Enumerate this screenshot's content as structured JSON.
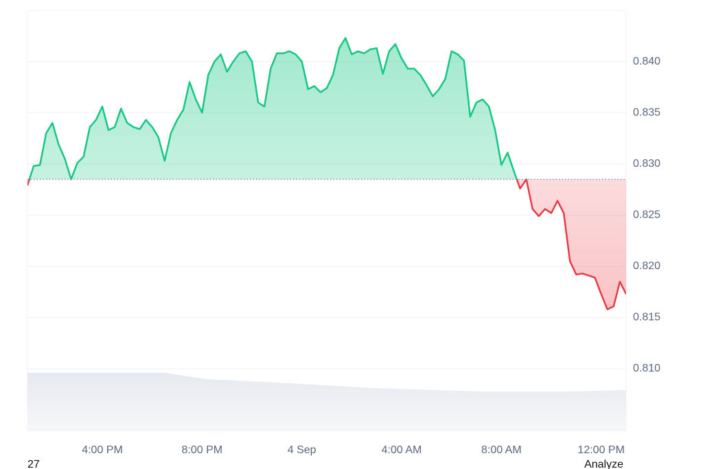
{
  "chart_data": {
    "type": "line",
    "series": [
      {
        "color_up": "#16c784",
        "color_down": "#ea3943",
        "values": [
          0.8279,
          0.8298,
          0.8299,
          0.833,
          0.834,
          0.8319,
          0.8305,
          0.8285,
          0.8301,
          0.8307,
          0.8336,
          0.8343,
          0.8356,
          0.8333,
          0.8336,
          0.8354,
          0.834,
          0.8336,
          0.8334,
          0.8343,
          0.8336,
          0.8326,
          0.8303,
          0.833,
          0.8343,
          0.8353,
          0.838,
          0.8363,
          0.835,
          0.8387,
          0.84,
          0.8407,
          0.839,
          0.84,
          0.8408,
          0.841,
          0.84,
          0.836,
          0.8356,
          0.8393,
          0.8408,
          0.8408,
          0.841,
          0.8407,
          0.84,
          0.8373,
          0.8376,
          0.837,
          0.8374,
          0.8387,
          0.8413,
          0.8423,
          0.8407,
          0.841,
          0.8408,
          0.8412,
          0.8413,
          0.8388,
          0.841,
          0.8417,
          0.8403,
          0.8393,
          0.8393,
          0.8387,
          0.8377,
          0.8366,
          0.8373,
          0.8383,
          0.841,
          0.8407,
          0.8401,
          0.8346,
          0.836,
          0.8363,
          0.8356,
          0.8333,
          0.8299,
          0.8311,
          0.8293,
          0.8276,
          0.8285,
          0.8256,
          0.8249,
          0.8256,
          0.8252,
          0.8264,
          0.8252,
          0.8205,
          0.8192,
          0.8193,
          0.8191,
          0.8189,
          0.8173,
          0.8158,
          0.8161,
          0.8185,
          0.8173
        ]
      }
    ],
    "baseline": 0.8285,
    "xlim": [
      0,
      96
    ],
    "xticks": [
      {
        "value": 12,
        "label": "4:00 PM"
      },
      {
        "value": 28,
        "label": "8:00 PM"
      },
      {
        "value": 44,
        "label": "4 Sep"
      },
      {
        "value": 60,
        "label": "4:00 AM"
      },
      {
        "value": 76,
        "label": "8:00 AM"
      },
      {
        "value": 92,
        "label": "12:00 PM"
      }
    ],
    "ylim": [
      0.8039,
      0.845
    ],
    "yticks": [
      {
        "value": 0.81,
        "label": "0.810"
      },
      {
        "value": 0.815,
        "label": "0.815"
      },
      {
        "value": 0.82,
        "label": "0.820"
      },
      {
        "value": 0.825,
        "label": "0.825"
      },
      {
        "value": 0.83,
        "label": "0.830"
      },
      {
        "value": 0.835,
        "label": "0.835"
      },
      {
        "value": 0.84,
        "label": "0.840"
      }
    ],
    "grid": true
  },
  "footer": {
    "left": "27",
    "right": "Analyze"
  }
}
